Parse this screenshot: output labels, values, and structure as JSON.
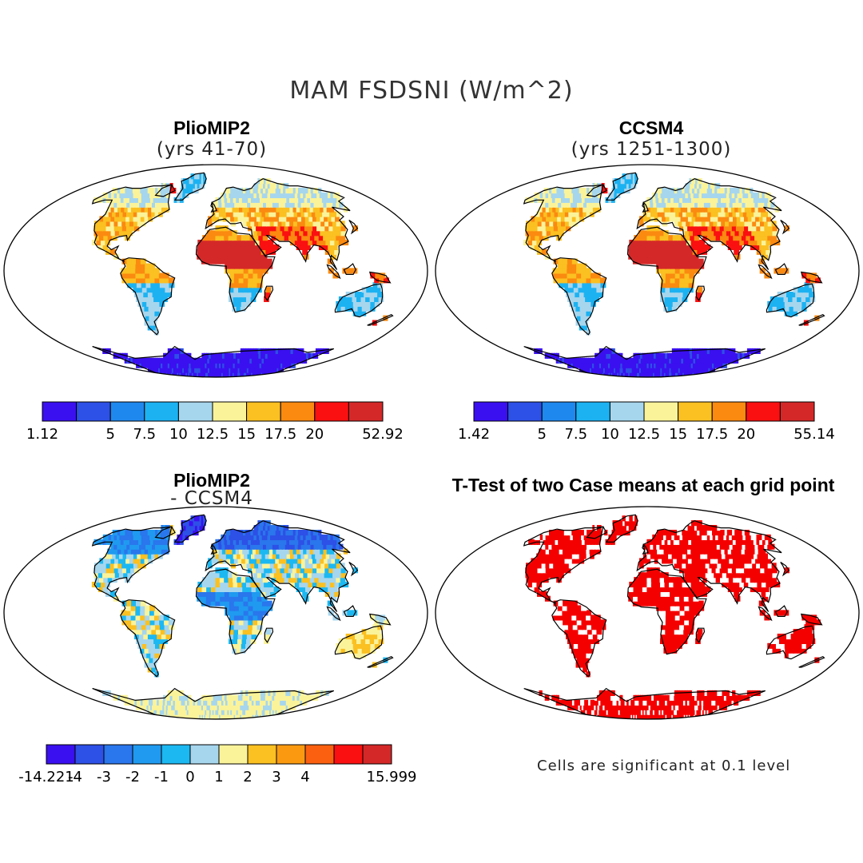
{
  "title": "MAM FSDSNI (W/m^2)",
  "colors": {
    "pos": [
      "#3a10f0",
      "#2d50e6",
      "#1f88ee",
      "#1cb2f2",
      "#a6d6ee",
      "#fbf39a",
      "#fbc021",
      "#fb8a10",
      "#fa1010",
      "#d42828"
    ],
    "diff": [
      "#3a10f0",
      "#2d50e6",
      "#2a76ec",
      "#1f9af0",
      "#1cb8f2",
      "#a6d6ee",
      "#fbf39a",
      "#fbc021",
      "#fb9a10",
      "#fb6010",
      "#fa1010",
      "#d42828"
    ],
    "sig": "#f40000",
    "land_outline": "#000000"
  },
  "panels": [
    {
      "id": "pliomip2",
      "title": "PlioMIP2",
      "subtitle": "(yrs 41-70)"
    },
    {
      "id": "ccsm4",
      "title": "CCSM4",
      "subtitle": "(yrs 1251-1300)"
    },
    {
      "id": "diff",
      "title": "PlioMIP2",
      "subtitle": "- CCSM4"
    },
    {
      "id": "ttest",
      "title": "T-Test of two Case means at each grid point",
      "subtitle": ""
    }
  ],
  "note": "Cells are significant at 0.1 level",
  "chart_data": [
    {
      "type": "heatmap",
      "title": "PlioMIP2",
      "subtitle": "(yrs 41-70)",
      "colorbar_labels": [
        "1.12",
        "",
        "5",
        "7.5",
        "10",
        "12.5",
        "15",
        "17.5",
        "20",
        "",
        "52.92"
      ]
    },
    {
      "type": "heatmap",
      "title": "CCSM4",
      "subtitle": "(yrs 1251-1300)",
      "colorbar_labels": [
        "1.42",
        "",
        "5",
        "7.5",
        "10",
        "12.5",
        "15",
        "17.5",
        "20",
        "",
        "55.14"
      ]
    },
    {
      "type": "heatmap",
      "title": "PlioMIP2",
      "subtitle": "- CCSM4",
      "colorbar_labels": [
        "-14.221",
        "-4",
        "-3",
        "-2",
        "-1",
        "0",
        "1",
        "2",
        "3",
        "4",
        "",
        "",
        "15.999"
      ]
    },
    {
      "type": "heatmap",
      "title": "T-Test of two Case means at each grid point",
      "subtitle": ""
    }
  ]
}
